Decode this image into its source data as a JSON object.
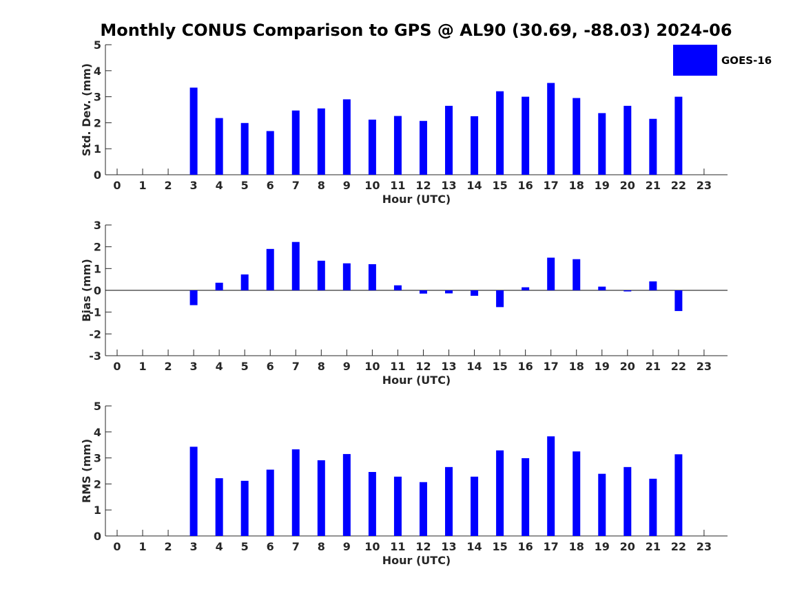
{
  "title": "Monthly CONUS Comparison to GPS @ AL90 (30.69, -88.03) 2024-06",
  "legend": {
    "label": "GOES-16",
    "color": "#0000ff"
  },
  "bar_color": "#0000ff",
  "chart_data": [
    {
      "type": "bar",
      "name": "stddev",
      "ylabel": "Std. Dev. (mm)",
      "xlabel": "Hour (UTC)",
      "ylim": [
        0,
        5
      ],
      "yticks": [
        0,
        1,
        2,
        3,
        4,
        5
      ],
      "categories": [
        "0",
        "1",
        "2",
        "3",
        "4",
        "5",
        "6",
        "7",
        "8",
        "9",
        "10",
        "11",
        "12",
        "13",
        "14",
        "15",
        "16",
        "17",
        "18",
        "19",
        "20",
        "21",
        "22",
        "23"
      ],
      "series": [
        {
          "values": [
            null,
            null,
            null,
            3.35,
            2.18,
            1.99,
            1.68,
            2.47,
            2.55,
            2.9,
            2.12,
            2.26,
            2.07,
            2.65,
            2.25,
            3.21,
            3.0,
            3.53,
            2.95,
            2.37,
            2.65,
            2.15,
            3.0,
            null
          ]
        }
      ]
    },
    {
      "type": "bar",
      "name": "bias",
      "ylabel": "Bias (mm)",
      "xlabel": "Hour (UTC)",
      "ylim": [
        -3,
        3
      ],
      "yticks": [
        -3,
        -2,
        -1,
        0,
        1,
        2,
        3
      ],
      "zero_line": true,
      "categories": [
        "0",
        "1",
        "2",
        "3",
        "4",
        "5",
        "6",
        "7",
        "8",
        "9",
        "10",
        "11",
        "12",
        "13",
        "14",
        "15",
        "16",
        "17",
        "18",
        "19",
        "20",
        "21",
        "22",
        "23"
      ],
      "series": [
        {
          "values": [
            null,
            null,
            null,
            -0.68,
            0.35,
            0.73,
            1.9,
            2.22,
            1.36,
            1.24,
            1.2,
            0.23,
            -0.15,
            -0.14,
            -0.25,
            -0.77,
            0.14,
            1.5,
            1.43,
            0.17,
            -0.05,
            0.41,
            -0.95,
            null
          ]
        }
      ]
    },
    {
      "type": "bar",
      "name": "rms",
      "ylabel": "RMS (mm)",
      "xlabel": "Hour (UTC)",
      "ylim": [
        0,
        5
      ],
      "yticks": [
        0,
        1,
        2,
        3,
        4,
        5
      ],
      "categories": [
        "0",
        "1",
        "2",
        "3",
        "4",
        "5",
        "6",
        "7",
        "8",
        "9",
        "10",
        "11",
        "12",
        "13",
        "14",
        "15",
        "16",
        "17",
        "18",
        "19",
        "20",
        "21",
        "22",
        "23"
      ],
      "series": [
        {
          "values": [
            null,
            null,
            null,
            3.43,
            2.22,
            2.12,
            2.55,
            3.33,
            2.91,
            3.15,
            2.46,
            2.28,
            2.07,
            2.65,
            2.28,
            3.29,
            2.99,
            3.83,
            3.25,
            2.39,
            2.65,
            2.2,
            3.14,
            null
          ]
        }
      ]
    }
  ]
}
